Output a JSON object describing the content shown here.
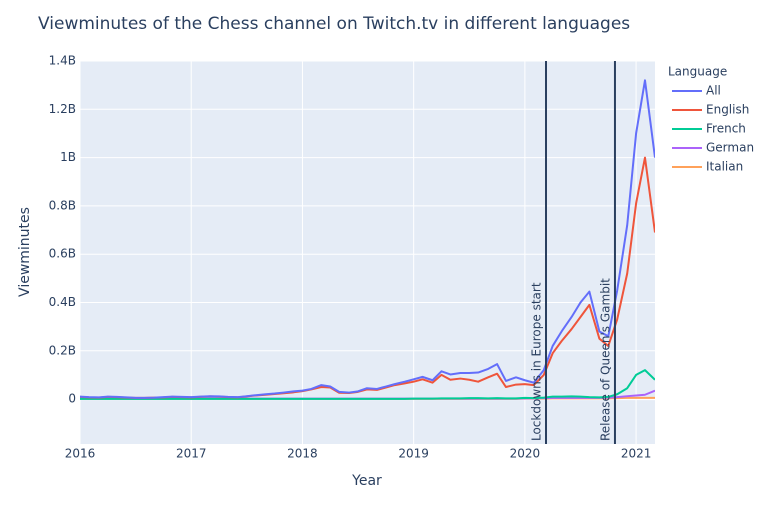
{
  "chart_data": {
    "type": "line",
    "title": "Viewminutes of the Chess channel on Twitch.tv in different languages",
    "x_label": "Year",
    "y_label": "Viewminutes",
    "legend_title": "Language",
    "x": [
      2016,
      2016.08,
      2016.17,
      2016.25,
      2016.33,
      2016.42,
      2016.5,
      2016.58,
      2016.67,
      2016.75,
      2016.83,
      2016.92,
      2017,
      2017.08,
      2017.17,
      2017.25,
      2017.33,
      2017.42,
      2017.5,
      2017.58,
      2017.67,
      2017.75,
      2017.83,
      2017.92,
      2018,
      2018.08,
      2018.17,
      2018.25,
      2018.33,
      2018.42,
      2018.5,
      2018.58,
      2018.67,
      2018.75,
      2018.83,
      2018.92,
      2019,
      2019.08,
      2019.17,
      2019.25,
      2019.33,
      2019.42,
      2019.5,
      2019.58,
      2019.67,
      2019.75,
      2019.83,
      2019.92,
      2020,
      2020.08,
      2020.17,
      2020.25,
      2020.33,
      2020.42,
      2020.5,
      2020.58,
      2020.67,
      2020.75,
      2020.83,
      2020.92,
      2021,
      2021.08,
      2021.17
    ],
    "series": [
      {
        "name": "All",
        "color": "#636efa",
        "values": [
          10000000.0,
          8000000.0,
          7000000.0,
          10000000.0,
          9000000.0,
          7000000.0,
          5000000.0,
          5000000.0,
          6000000.0,
          8000000.0,
          10000000.0,
          9000000.0,
          8000000.0,
          10000000.0,
          12000000.0,
          11000000.0,
          9000000.0,
          8000000.0,
          12000000.0,
          16000000.0,
          20000000.0,
          23000000.0,
          27000000.0,
          32000000.0,
          35000000.0,
          42000000.0,
          58000000.0,
          52000000.0,
          30000000.0,
          27000000.0,
          32000000.0,
          45000000.0,
          42000000.0,
          52000000.0,
          62000000.0,
          72000000.0,
          82000000.0,
          92000000.0,
          78000000.0,
          115000000.0,
          102000000.0,
          108000000.0,
          108000000.0,
          110000000.0,
          125000000.0,
          145000000.0,
          75000000.0,
          90000000.0,
          78000000.0,
          68000000.0,
          120000000.0,
          220000000.0,
          280000000.0,
          340000000.0,
          400000000.0,
          445000000.0,
          280000000.0,
          260000000.0,
          450000000.0,
          720000000.0,
          1100000000.0,
          1320000000.0,
          1000000000.0
        ]
      },
      {
        "name": "English",
        "color": "#ef553b",
        "values": [
          9000000.0,
          7000000.0,
          6000000.0,
          9000000.0,
          8000000.0,
          6000000.0,
          5000000.0,
          5000000.0,
          6000000.0,
          7000000.0,
          9000000.0,
          8000000.0,
          7000000.0,
          9000000.0,
          11000000.0,
          10000000.0,
          8000000.0,
          7000000.0,
          11000000.0,
          15000000.0,
          18000000.0,
          21000000.0,
          24000000.0,
          28000000.0,
          33000000.0,
          40000000.0,
          50000000.0,
          48000000.0,
          26000000.0,
          25000000.0,
          30000000.0,
          40000000.0,
          38000000.0,
          48000000.0,
          58000000.0,
          65000000.0,
          72000000.0,
          82000000.0,
          68000000.0,
          100000000.0,
          80000000.0,
          85000000.0,
          80000000.0,
          72000000.0,
          90000000.0,
          105000000.0,
          50000000.0,
          60000000.0,
          62000000.0,
          58000000.0,
          100000000.0,
          190000000.0,
          240000000.0,
          290000000.0,
          340000000.0,
          390000000.0,
          250000000.0,
          220000000.0,
          330000000.0,
          520000000.0,
          810000000.0,
          1000000000.0,
          690000000.0
        ]
      },
      {
        "name": "French",
        "color": "#00cc96",
        "values": [
          1000000.0,
          1000000.0,
          1000000.0,
          1000000.0,
          1000000.0,
          1000000.0,
          1000000.0,
          1000000.0,
          1000000.0,
          1000000.0,
          1000000.0,
          1000000.0,
          1000000.0,
          1000000.0,
          1000000.0,
          1000000.0,
          1000000.0,
          1000000.0,
          1000000.0,
          1000000.0,
          1000000.0,
          1000000.0,
          1000000.0,
          1000000.0,
          1000000.0,
          1000000.0,
          1000000.0,
          1000000.0,
          1000000.0,
          1000000.0,
          1000000.0,
          1000000.0,
          1000000.0,
          1000000.0,
          1000000.0,
          1000000.0,
          2000000.0,
          2000000.0,
          2000000.0,
          3000000.0,
          3000000.0,
          3000000.0,
          4000000.0,
          4000000.0,
          3000000.0,
          4000000.0,
          3000000.0,
          3000000.0,
          5000000.0,
          4000000.0,
          6000000.0,
          10000000.0,
          10000000.0,
          11000000.0,
          10000000.0,
          8000000.0,
          7000000.0,
          9000000.0,
          20000000.0,
          45000000.0,
          100000000.0,
          120000000.0,
          80000000.0
        ]
      },
      {
        "name": "German",
        "color": "#ab63fa",
        "values": [
          2000000.0,
          2000000.0,
          2000000.0,
          2000000.0,
          2000000.0,
          2000000.0,
          2000000.0,
          2000000.0,
          2000000.0,
          2000000.0,
          2000000.0,
          2000000.0,
          2000000.0,
          2000000.0,
          2000000.0,
          2000000.0,
          2000000.0,
          2000000.0,
          2000000.0,
          2000000.0,
          2000000.0,
          2000000.0,
          2000000.0,
          2000000.0,
          2000000.0,
          2000000.0,
          2000000.0,
          2000000.0,
          2000000.0,
          2000000.0,
          2000000.0,
          2000000.0,
          2000000.0,
          2000000.0,
          2000000.0,
          2000000.0,
          2000000.0,
          2000000.0,
          2000000.0,
          2000000.0,
          2000000.0,
          2000000.0,
          2000000.0,
          2000000.0,
          2000000.0,
          2000000.0,
          2000000.0,
          2000000.0,
          3000000.0,
          3000000.0,
          4000000.0,
          5000000.0,
          5000000.0,
          5000000.0,
          5000000.0,
          5000000.0,
          5000000.0,
          6000000.0,
          8000000.0,
          12000000.0,
          15000000.0,
          18000000.0,
          35000000.0
        ]
      },
      {
        "name": "Italian",
        "color": "#ffa15a",
        "values": [
          1000000.0,
          1000000.0,
          1000000.0,
          1000000.0,
          1000000.0,
          1000000.0,
          1000000.0,
          1000000.0,
          1000000.0,
          1000000.0,
          1000000.0,
          1000000.0,
          1000000.0,
          1000000.0,
          1000000.0,
          1000000.0,
          1000000.0,
          1000000.0,
          1000000.0,
          1000000.0,
          1000000.0,
          1000000.0,
          1000000.0,
          1000000.0,
          1000000.0,
          1000000.0,
          1000000.0,
          1000000.0,
          1000000.0,
          1000000.0,
          1000000.0,
          1000000.0,
          1000000.0,
          1000000.0,
          1000000.0,
          1000000.0,
          1000000.0,
          1000000.0,
          1000000.0,
          1000000.0,
          1000000.0,
          1000000.0,
          1000000.0,
          1000000.0,
          1000000.0,
          1000000.0,
          1000000.0,
          1000000.0,
          2000000.0,
          2000000.0,
          2000000.0,
          3000000.0,
          3000000.0,
          3000000.0,
          3000000.0,
          3000000.0,
          3000000.0,
          3000000.0,
          4000000.0,
          5000000.0,
          5000000.0,
          5000000.0,
          5000000.0
        ]
      }
    ],
    "xlim": [
      2016,
      2021.17
    ],
    "xticks": [
      2016,
      2017,
      2018,
      2019,
      2020,
      2021
    ],
    "ylim": [
      -186000000.0,
      1400000000.0
    ],
    "yticks": [
      0,
      {
        "value": 200000000.0,
        "label": "0.2B"
      },
      {
        "value": 400000000.0,
        "label": "0.4B"
      },
      {
        "value": 600000000.0,
        "label": "0.6B"
      },
      {
        "value": 800000000.0,
        "label": "0.8B"
      },
      {
        "value": 1000000000.0,
        "label": "1B"
      },
      {
        "value": 1200000000.0,
        "label": "1.2B"
      },
      {
        "value": 1400000000.0,
        "label": "1.4B"
      }
    ],
    "grid": true,
    "vlines": [
      {
        "x": 2020.19,
        "text": "Lockdowns in Europe start",
        "color": "#2a3f5f"
      },
      {
        "x": 2020.81,
        "text": "Release of Queen's Gambit",
        "color": "#2a3f5f"
      }
    ]
  }
}
